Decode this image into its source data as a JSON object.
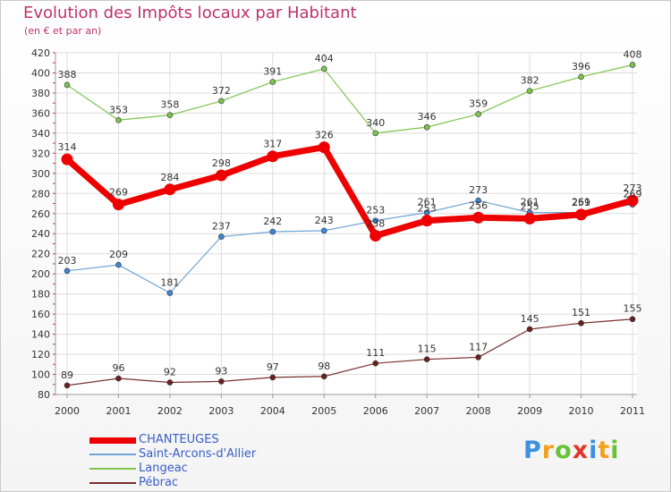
{
  "title": "Evolution des Impôts locaux par Habitant",
  "subtitle": "(en € et par an)",
  "brand": {
    "letters": [
      "P",
      "r",
      "o",
      "x",
      "i",
      "t",
      "i"
    ],
    "colors": [
      "#3d8fe0",
      "#f2a11e",
      "#6ac13a",
      "#e5342a",
      "#3d8fe0",
      "#f2a11e",
      "#6ac13a"
    ]
  },
  "chart_data": {
    "type": "line",
    "title": "Evolution des Impôts locaux par Habitant",
    "subtitle": "(en € et par an)",
    "xlabel": "",
    "ylabel": "",
    "x": [
      "2000",
      "2001",
      "2002",
      "2003",
      "2004",
      "2005",
      "2006",
      "2007",
      "2008",
      "2009",
      "2010",
      "2011"
    ],
    "ylim": [
      80,
      420
    ],
    "yticks": [
      80,
      100,
      120,
      140,
      160,
      180,
      200,
      220,
      240,
      260,
      280,
      300,
      320,
      340,
      360,
      380,
      400,
      420
    ],
    "grid": true,
    "legend_position": "bottom-left",
    "series": [
      {
        "name": "Langeac",
        "color": "#7ec34e",
        "marker": "#7ec34e",
        "bold": false,
        "values": [
          388,
          353,
          358,
          372,
          391,
          404,
          340,
          346,
          359,
          382,
          396,
          408
        ]
      },
      {
        "name": "Pébrac",
        "color": "#7b2f2f",
        "marker": "#6b2020",
        "bold": false,
        "values": [
          89,
          96,
          92,
          93,
          97,
          98,
          111,
          115,
          117,
          145,
          151,
          155
        ]
      },
      {
        "name": "Saint-Arcons-d'Allier",
        "color": "#6ea4d6",
        "marker": "#3f86d6",
        "bold": false,
        "values": [
          203,
          209,
          181,
          237,
          242,
          243,
          253,
          261,
          273,
          261,
          261,
          269
        ]
      },
      {
        "name": "CHANTEUGES",
        "color": "#ee0000",
        "marker": "#ee0000",
        "bold": true,
        "values": [
          314,
          269,
          284,
          298,
          317,
          326,
          238,
          253,
          256,
          255,
          259,
          273
        ]
      }
    ],
    "legend": [
      "CHANTEUGES",
      "Saint-Arcons-d'Allier",
      "Langeac",
      "Pébrac"
    ]
  }
}
